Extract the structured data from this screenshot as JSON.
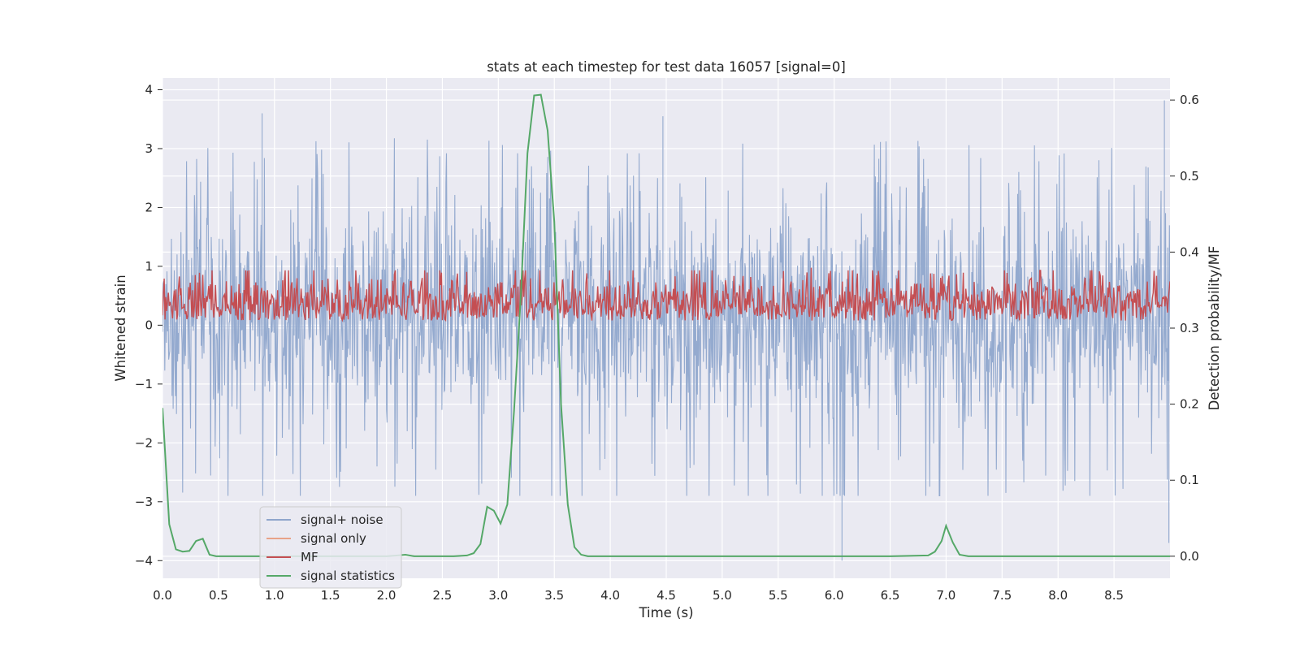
{
  "chart_data": {
    "type": "line",
    "title": "stats at each timestep for test data 16057 [signal=0]",
    "xlabel": "Time (s)",
    "ylabel_left": "Whitened strain",
    "ylabel_right": "Detection probability/MF",
    "xlim": [
      0.0,
      9.0
    ],
    "ylim_left": [
      -4.3,
      4.2
    ],
    "ylim_right": [
      -0.029,
      0.629
    ],
    "x_ticks": [
      "0.0",
      "0.5",
      "1.0",
      "1.5",
      "2.0",
      "2.5",
      "3.0",
      "3.5",
      "4.0",
      "4.5",
      "5.0",
      "5.5",
      "6.0",
      "6.5",
      "7.0",
      "7.5",
      "8.0",
      "8.5"
    ],
    "y_ticks_left": [
      "4",
      "3",
      "2",
      "1",
      "0",
      "−1",
      "−2",
      "−3",
      "−4"
    ],
    "y_ticks_right": [
      "0.6",
      "0.5",
      "0.4",
      "0.3",
      "0.2",
      "0.1",
      "0.0"
    ],
    "grid": true,
    "legend_position": "lower-left",
    "colors": {
      "background": "#eaeaf2",
      "grid": "#ffffff",
      "noise": "#8fa6cc",
      "signal_only": "#e8a388",
      "mf": "#c44e52",
      "statistics": "#55a868"
    },
    "series": [
      {
        "name": "signal+ noise",
        "axis": "left",
        "description_range": [
          -4.0,
          3.85
        ],
        "typical_band": [
          -2.0,
          2.4
        ],
        "peaks": [
          {
            "x": 0.89,
            "y": 3.6
          },
          {
            "x": 8.95,
            "y": 3.82
          },
          {
            "x": 4.47,
            "y": 3.55
          },
          {
            "x": 6.07,
            "y": -4.0
          },
          {
            "x": 8.99,
            "y": -3.7
          }
        ]
      },
      {
        "name": "signal only",
        "axis": "left",
        "values": []
      },
      {
        "name": "MF",
        "axis": "right",
        "typical_band": [
          0.31,
          0.38
        ],
        "max": 0.376
      },
      {
        "name": "signal statistics",
        "axis": "right",
        "x": [
          0.0,
          0.06,
          0.12,
          0.18,
          0.24,
          0.3,
          0.36,
          0.42,
          0.48,
          0.54,
          0.6,
          0.8,
          1.0,
          1.2,
          1.4,
          1.6,
          1.8,
          2.0,
          2.1,
          2.17,
          2.25,
          2.4,
          2.6,
          2.72,
          2.78,
          2.84,
          2.9,
          2.96,
          3.02,
          3.08,
          3.14,
          3.2,
          3.26,
          3.32,
          3.38,
          3.44,
          3.5,
          3.56,
          3.62,
          3.68,
          3.74,
          3.8,
          4.0,
          4.5,
          5.0,
          5.5,
          6.0,
          6.5,
          6.84,
          6.9,
          6.96,
          7.0,
          7.06,
          7.12,
          7.2,
          7.5,
          8.0,
          8.5,
          9.0
        ],
        "values": [
          0.195,
          0.042,
          0.009,
          0.006,
          0.007,
          0.02,
          0.023,
          0.002,
          0.0,
          0.0,
          0.0,
          0.0,
          0.0,
          0.0,
          0.0,
          0.0,
          0.0,
          0.0,
          0.001,
          0.002,
          0.0,
          0.0,
          0.0,
          0.001,
          0.004,
          0.016,
          0.065,
          0.06,
          0.043,
          0.068,
          0.19,
          0.34,
          0.53,
          0.606,
          0.607,
          0.56,
          0.44,
          0.2,
          0.068,
          0.012,
          0.002,
          0.0,
          0.0,
          0.0,
          0.0,
          0.0,
          0.0,
          0.0,
          0.001,
          0.006,
          0.02,
          0.04,
          0.018,
          0.002,
          0.0,
          0.0,
          0.0,
          0.0,
          0.0
        ]
      }
    ]
  }
}
